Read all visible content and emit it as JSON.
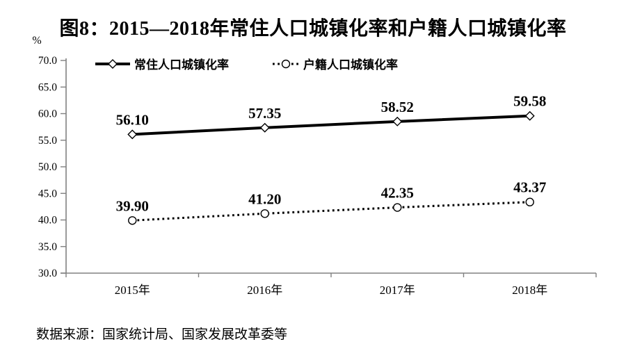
{
  "title": "图8：2015—2018年常住人口城镇化率和户籍人口城镇化率",
  "source": "数据来源：国家统计局、国家发展改革委等",
  "chart_data": {
    "type": "line",
    "title": "图8：2015—2018年常住人口城镇化率和户籍人口城镇化率",
    "unit_label": "%",
    "categories": [
      "2015年",
      "2016年",
      "2017年",
      "2018年"
    ],
    "series": [
      {
        "name": "常住人口城镇化率",
        "values": [
          56.1,
          57.35,
          58.52,
          59.58
        ],
        "labels": [
          "56.10",
          "57.35",
          "58.52",
          "59.58"
        ],
        "line_style": "solid",
        "marker": "diamond"
      },
      {
        "name": "户籍人口城镇化率",
        "values": [
          39.9,
          41.2,
          42.35,
          43.37
        ],
        "labels": [
          "39.90",
          "41.20",
          "42.35",
          "43.37"
        ],
        "line_style": "dotted",
        "marker": "circle"
      }
    ],
    "ylim": [
      30.0,
      70.0
    ],
    "ytick_step": 5.0,
    "ytick_labels": [
      "30.0",
      "35.0",
      "40.0",
      "45.0",
      "50.0",
      "55.0",
      "60.0",
      "65.0",
      "70.0"
    ],
    "grid": false,
    "legend_position": "top-inside",
    "colors": {
      "line": "#000000",
      "axis": "#808080",
      "marker_fill": "#ffffff",
      "text": "#000000",
      "background": "#ffffff"
    }
  }
}
